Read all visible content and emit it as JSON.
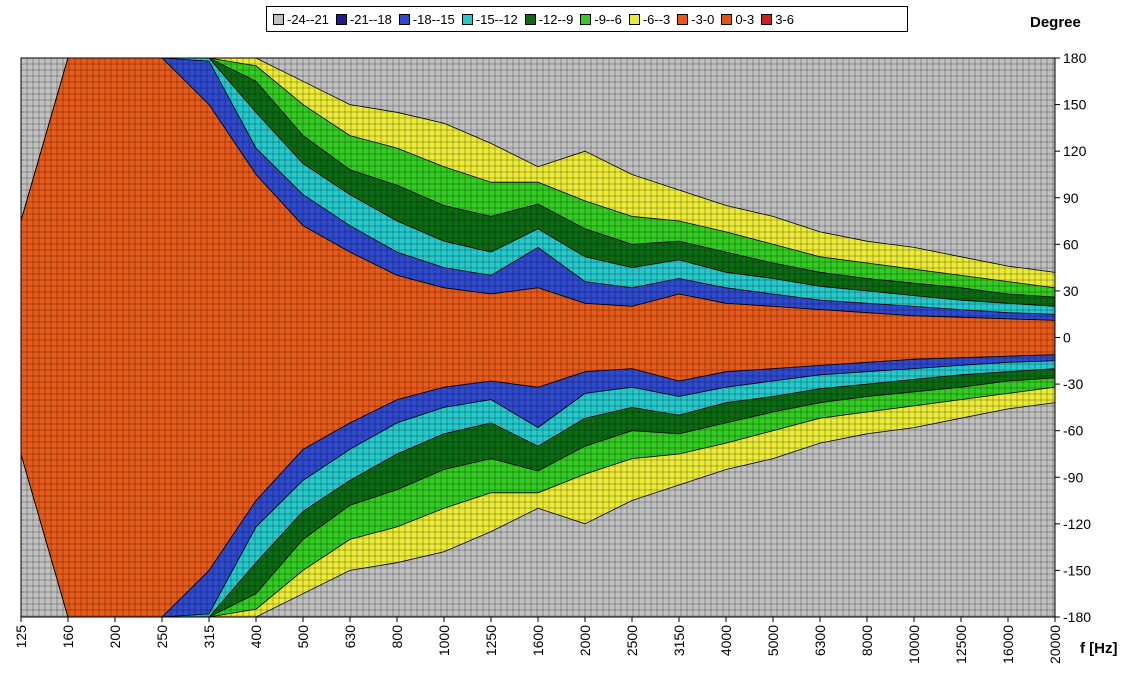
{
  "chart_data": {
    "type": "heatmap",
    "title": "",
    "xlabel": "f [Hz]",
    "ylabel": "Degree",
    "x_ticks": [
      "125",
      "160",
      "200",
      "250",
      "315",
      "400",
      "500",
      "630",
      "800",
      "1000",
      "1250",
      "1600",
      "2000",
      "2500",
      "3150",
      "4000",
      "5000",
      "6300",
      "8000",
      "10000",
      "12500",
      "16000",
      "20000"
    ],
    "y_ticks": [
      180,
      150,
      120,
      90,
      60,
      30,
      0,
      -30,
      -60,
      -90,
      -120,
      -150,
      -180
    ],
    "ylim": [
      -180,
      180
    ],
    "legend_position": "top",
    "grid": true,
    "levels": [
      {
        "label": "-24--21",
        "color": "#c0c0c0"
      },
      {
        "label": "-21--18",
        "color": "#1f1f8c"
      },
      {
        "label": "-18--15",
        "color": "#2f49cf"
      },
      {
        "label": "-15--12",
        "color": "#26c9cc"
      },
      {
        "label": "-12--9",
        "color": "#0c6a14"
      },
      {
        "label": "-9--6",
        "color": "#33cc22"
      },
      {
        "label": "-6--3",
        "color": "#ecec38"
      },
      {
        "label": "-3-0",
        "color": "#e85a1a"
      },
      {
        "label": "0-3",
        "color": "#e05416"
      },
      {
        "label": "3-6",
        "color": "#cc1f1f"
      }
    ],
    "contour_widths_deg": [
      [
        75,
        75,
        75,
        75,
        75,
        75
      ],
      [
        180,
        180,
        180,
        180,
        180,
        180
      ],
      [
        180,
        180,
        180,
        180,
        180,
        180
      ],
      [
        180,
        180,
        180,
        180,
        180,
        180
      ],
      [
        150,
        178,
        180,
        180,
        180,
        180
      ],
      [
        105,
        122,
        145,
        165,
        175,
        180
      ],
      [
        72,
        92,
        112,
        130,
        150,
        165
      ],
      [
        55,
        72,
        92,
        108,
        130,
        150
      ],
      [
        40,
        55,
        75,
        98,
        122,
        145
      ],
      [
        32,
        45,
        62,
        85,
        110,
        138
      ],
      [
        28,
        40,
        55,
        78,
        100,
        125
      ],
      [
        32,
        58,
        70,
        86,
        100,
        110
      ],
      [
        22,
        36,
        52,
        70,
        88,
        120
      ],
      [
        20,
        32,
        45,
        60,
        78,
        105
      ],
      [
        28,
        38,
        50,
        62,
        75,
        95
      ],
      [
        22,
        32,
        42,
        55,
        68,
        85
      ],
      [
        20,
        28,
        38,
        48,
        60,
        78
      ],
      [
        18,
        24,
        33,
        42,
        52,
        68
      ],
      [
        16,
        22,
        30,
        38,
        48,
        62
      ],
      [
        14,
        20,
        27,
        35,
        44,
        58
      ],
      [
        13,
        18,
        24,
        32,
        40,
        52
      ],
      [
        12,
        16,
        22,
        28,
        36,
        46
      ],
      [
        11,
        15,
        20,
        26,
        32,
        42
      ]
    ]
  }
}
